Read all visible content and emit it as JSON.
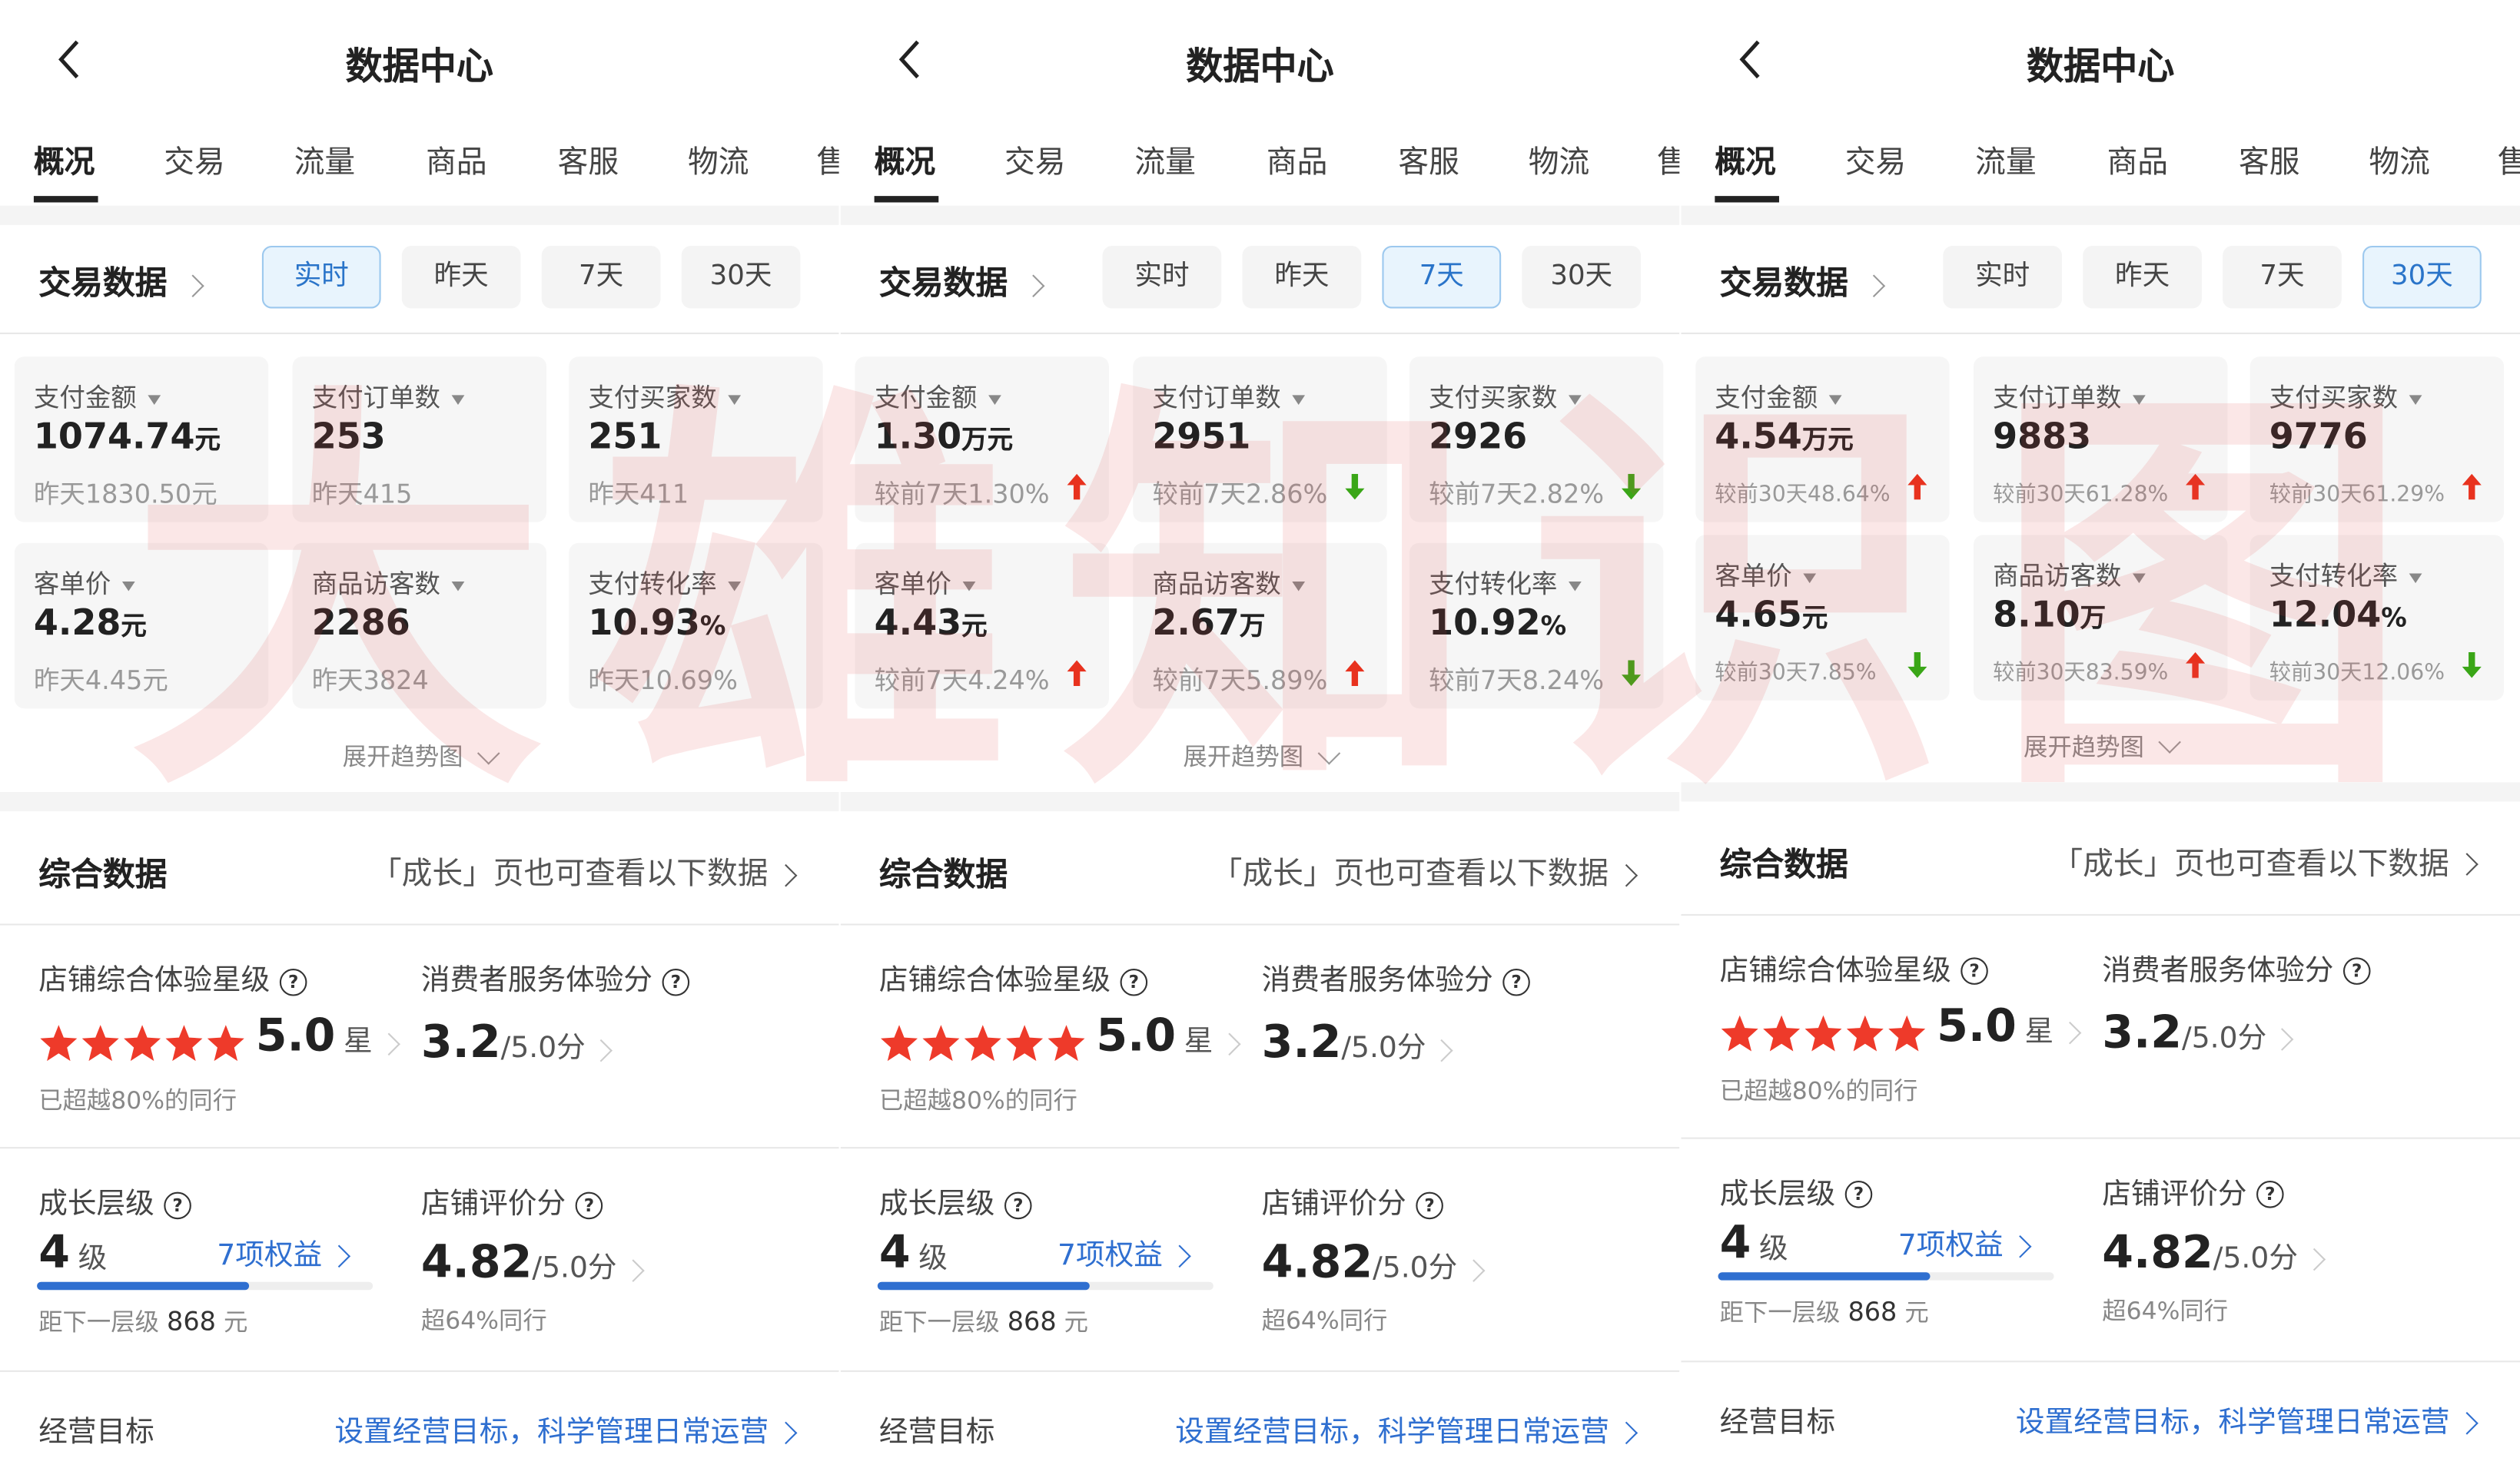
{
  "header": {
    "title": "数据中心",
    "back_icon": "chevron-left-icon"
  },
  "tabs": [
    "概况",
    "交易",
    "流量",
    "商品",
    "客服",
    "物流",
    "售"
  ],
  "trade": {
    "title": "交易数据",
    "ranges": [
      "实时",
      "昨天",
      "7天",
      "30天"
    ],
    "expand_label": "展开趋势图"
  },
  "composite": {
    "title": "综合数据",
    "link": "「成长」页也可查看以下数据",
    "star_label": "店铺综合体验星级",
    "star_value": "5.0",
    "star_unit": "星",
    "star_count": 5,
    "star_note": "已超越80%的同行",
    "service_label": "消费者服务体验分",
    "service_value": "3.2",
    "service_max": "/5.0分",
    "growth_label": "成长层级",
    "growth_value": "4",
    "growth_unit": "级",
    "growth_benefits": "7项权益",
    "growth_progress": 0.63,
    "growth_next": "距下一层级",
    "growth_next_amount": "868",
    "growth_next_unit": "元",
    "review_label": "店铺评价分",
    "review_value": "4.82",
    "review_max": "/5.0分",
    "review_note": "超64%同行",
    "goal_label": "经营目标",
    "goal_link": "设置经营目标，科学管理日常运营"
  },
  "colors": {
    "accent": "#2f6fd0",
    "up": "#e8321e",
    "down": "#3aa617",
    "star": "#ee3a2a"
  },
  "watermark": "大雄知识图",
  "panels": [
    {
      "selected_range": 0,
      "metrics": [
        {
          "label": "支付金额",
          "value": "1074.74",
          "unit": "元",
          "sub": "昨天1830.50元",
          "trend": null
        },
        {
          "label": "支付订单数",
          "value": "253",
          "unit": "",
          "sub": "昨天415",
          "trend": null
        },
        {
          "label": "支付买家数",
          "value": "251",
          "unit": "",
          "sub": "昨天411",
          "trend": null
        },
        {
          "label": "客单价",
          "value": "4.28",
          "unit": "元",
          "sub": "昨天4.45元",
          "trend": null
        },
        {
          "label": "商品访客数",
          "value": "2286",
          "unit": "",
          "sub": "昨天3824",
          "trend": null
        },
        {
          "label": "支付转化率",
          "value": "10.93",
          "unit": "%",
          "sub": "昨天10.69%",
          "trend": null
        }
      ]
    },
    {
      "selected_range": 2,
      "metrics": [
        {
          "label": "支付金额",
          "value": "1.30",
          "unit": "万元",
          "sub": "较前7天1.30%",
          "trend": "up"
        },
        {
          "label": "支付订单数",
          "value": "2951",
          "unit": "",
          "sub": "较前7天2.86%",
          "trend": "down"
        },
        {
          "label": "支付买家数",
          "value": "2926",
          "unit": "",
          "sub": "较前7天2.82%",
          "trend": "down"
        },
        {
          "label": "客单价",
          "value": "4.43",
          "unit": "元",
          "sub": "较前7天4.24%",
          "trend": "up"
        },
        {
          "label": "商品访客数",
          "value": "2.67",
          "unit": "万",
          "sub": "较前7天5.89%",
          "trend": "up"
        },
        {
          "label": "支付转化率",
          "value": "10.92",
          "unit": "%",
          "sub": "较前7天8.24%",
          "trend": "down"
        }
      ]
    },
    {
      "selected_range": 3,
      "metrics": [
        {
          "label": "支付金额",
          "value": "4.54",
          "unit": "万元",
          "sub": "较前30天48.64%",
          "trend": "up"
        },
        {
          "label": "支付订单数",
          "value": "9883",
          "unit": "",
          "sub": "较前30天61.28%",
          "trend": "up"
        },
        {
          "label": "支付买家数",
          "value": "9776",
          "unit": "",
          "sub": "较前30天61.29%",
          "trend": "up"
        },
        {
          "label": "客单价",
          "value": "4.65",
          "unit": "元",
          "sub": "较前30天7.85%",
          "trend": "down"
        },
        {
          "label": "商品访客数",
          "value": "8.10",
          "unit": "万",
          "sub": "较前30天83.59%",
          "trend": "up"
        },
        {
          "label": "支付转化率",
          "value": "12.04",
          "unit": "%",
          "sub": "较前30天12.06%",
          "trend": "down"
        }
      ]
    }
  ]
}
